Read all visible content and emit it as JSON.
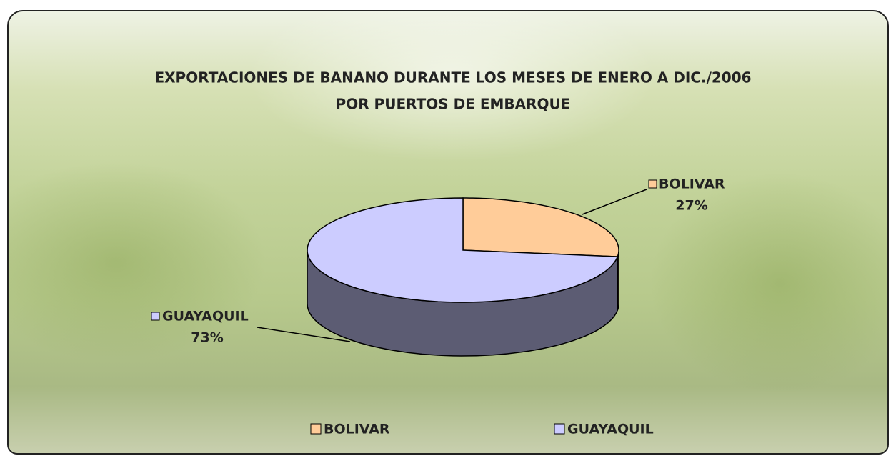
{
  "chart_data": {
    "type": "pie3d",
    "title": "EXPORTACIONES DE BANANO DURANTE LOS MESES DE ENERO A DIC./2006",
    "subtitle": "POR PUERTOS DE EMBARQUE",
    "categories": [
      "BOLIVAR",
      "GUAYAQUIL"
    ],
    "values": [
      27,
      73
    ],
    "value_labels": [
      "27%",
      "73%"
    ],
    "colors": [
      "#ffcc99",
      "#ccccff"
    ],
    "legend": "bottom"
  }
}
